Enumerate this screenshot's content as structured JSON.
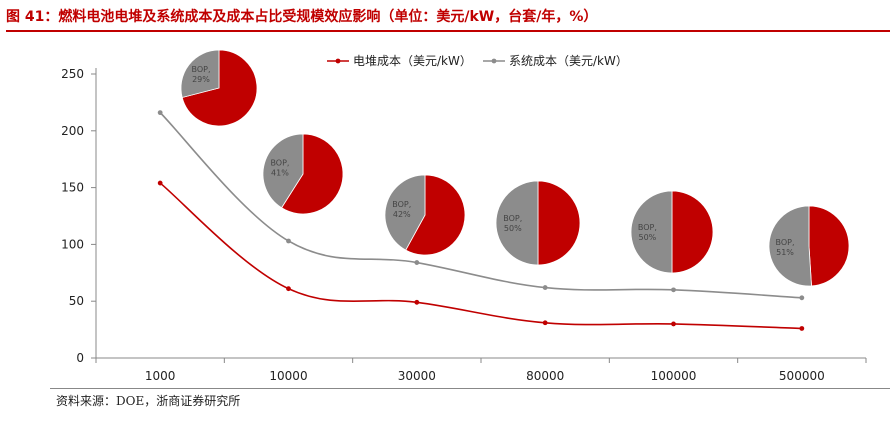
{
  "figure": {
    "title": "图 41：燃料电池电堆及系统成本及成本占比受规模效应影响（单位：美元/kW，台套/年，%）",
    "source": "资料来源：DOE，浙商证券研究所"
  },
  "colors": {
    "stack": "#c00000",
    "system": "#8c8c8c",
    "pie_bop": "#8c8c8c",
    "pie_stack": "#c00000",
    "title": "#c00000"
  },
  "chart_data": {
    "type": "line",
    "title": "",
    "xlabel": "",
    "ylabel": "",
    "ylim": [
      0,
      250
    ],
    "yticks": [
      "0",
      "50",
      "100",
      "150",
      "200",
      "250"
    ],
    "categories": [
      "1000",
      "10000",
      "30000",
      "80000",
      "100000",
      "500000"
    ],
    "series": [
      {
        "name": "电堆成本（美元/kW）",
        "color": "#c00000",
        "values": [
          154,
          61,
          49,
          31,
          30,
          26
        ]
      },
      {
        "name": "系统成本（美元/kW）",
        "color": "#8c8c8c",
        "values": [
          216,
          103,
          84,
          62,
          60,
          53
        ]
      }
    ],
    "legend": "top-center",
    "grid": false,
    "pies": [
      {
        "category": "1000",
        "bop_label": "BOP,",
        "bop_pct": 29,
        "bop_pct_label": "29%",
        "stack_pct": 71
      },
      {
        "category": "10000",
        "bop_label": "BOP,",
        "bop_pct": 41,
        "bop_pct_label": "41%",
        "stack_pct": 59
      },
      {
        "category": "30000",
        "bop_label": "BOP,",
        "bop_pct": 42,
        "bop_pct_label": "42%",
        "stack_pct": 58
      },
      {
        "category": "80000",
        "bop_label": "BOP,",
        "bop_pct": 50,
        "bop_pct_label": "50%",
        "stack_pct": 50
      },
      {
        "category": "100000",
        "bop_label": "BOP,",
        "bop_pct": 50,
        "bop_pct_label": "50%",
        "stack_pct": 50
      },
      {
        "category": "500000",
        "bop_label": "BOP,",
        "bop_pct": 51,
        "bop_pct_label": "51%",
        "stack_pct": 49
      }
    ]
  }
}
